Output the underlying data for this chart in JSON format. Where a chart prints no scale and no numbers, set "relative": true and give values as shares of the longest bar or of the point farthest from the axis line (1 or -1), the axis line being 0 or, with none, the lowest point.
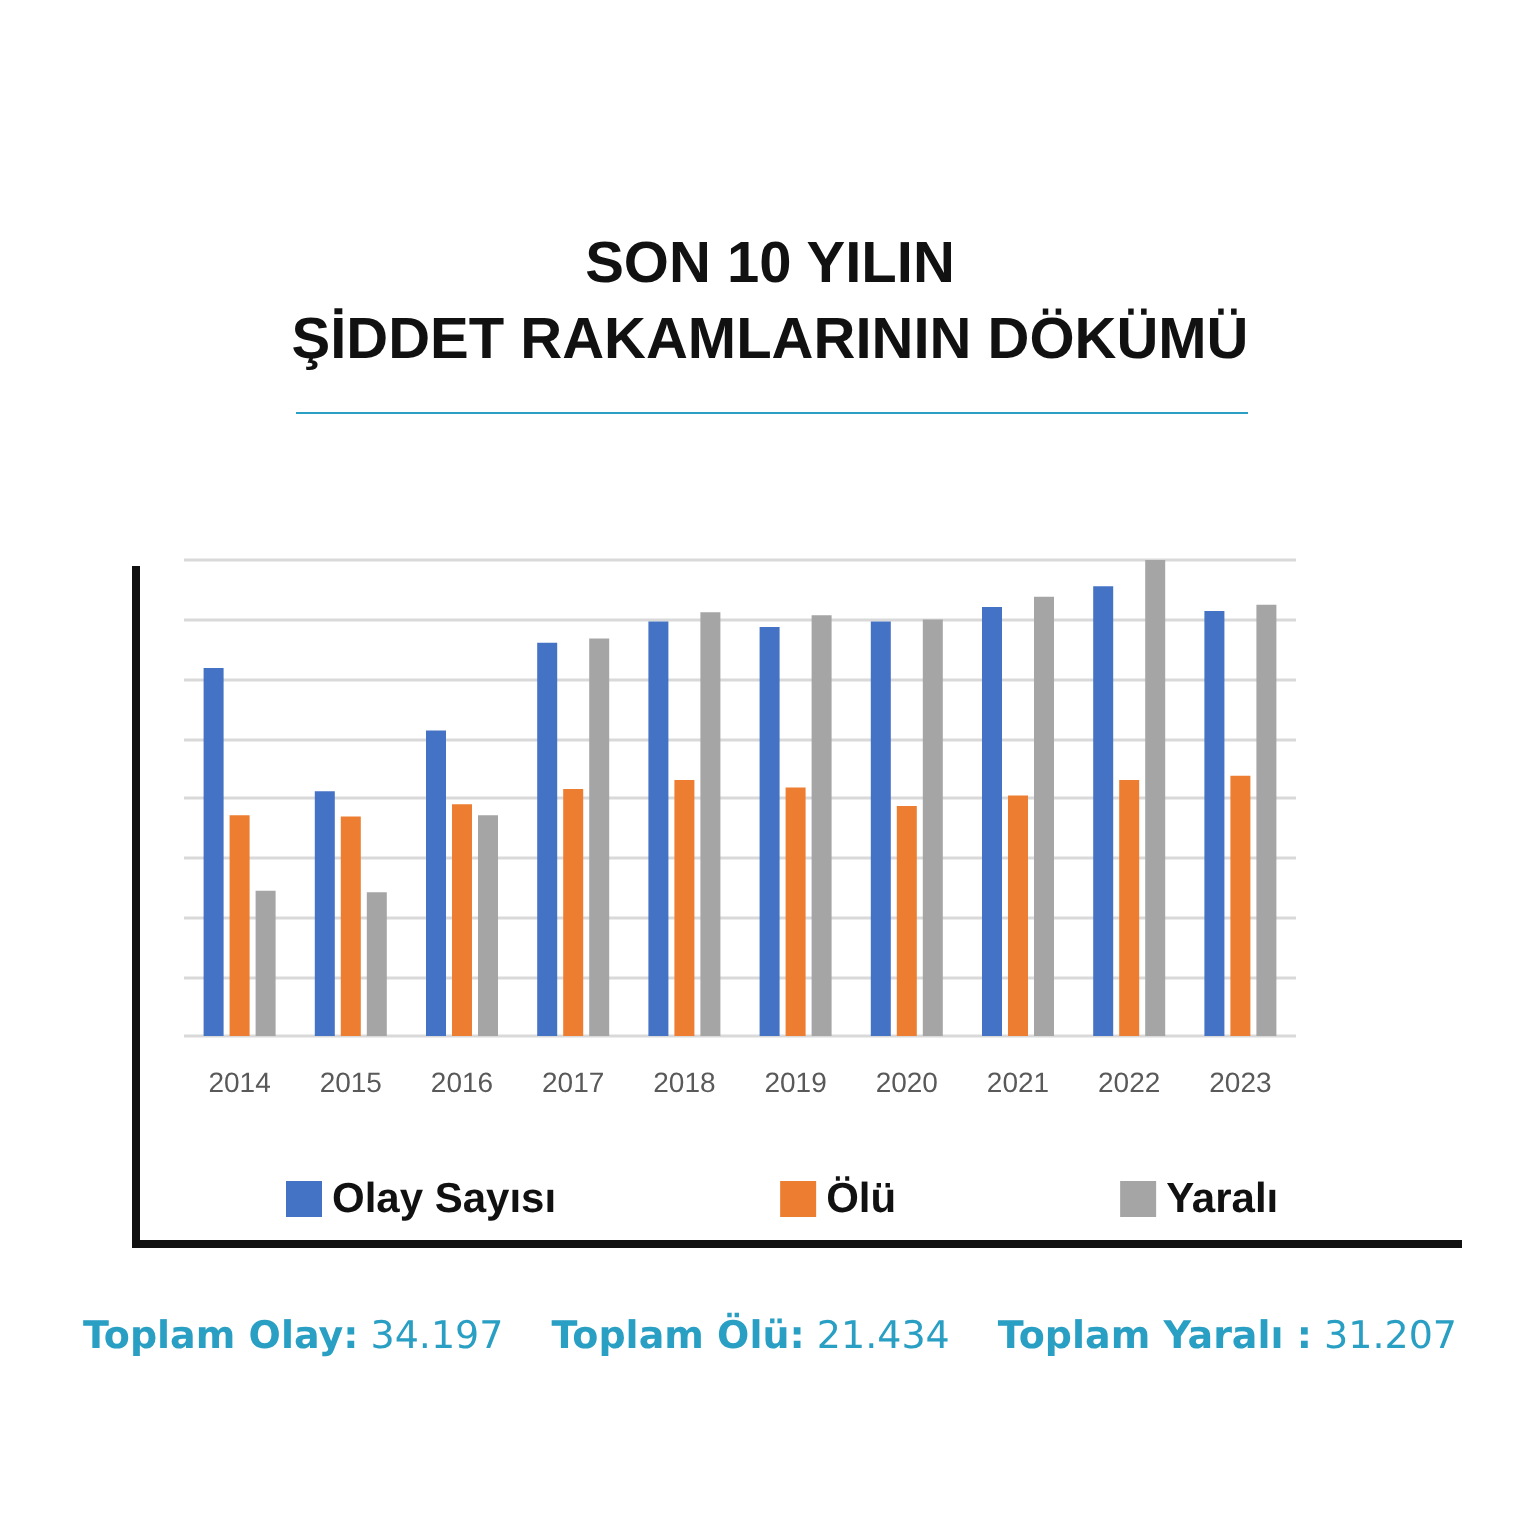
{
  "chart_data": {
    "type": "bar",
    "title": "SON 10 YILIN\nŞİDDET RAKAMLARININ DÖKÜMÜ",
    "relative": true,
    "grid": "y",
    "legend": "bottom",
    "categories": [
      "2014",
      "2015",
      "2016",
      "2017",
      "2018",
      "2019",
      "2020",
      "2021",
      "2022",
      "2023"
    ],
    "series": [
      {
        "name": "Olay Sayısı",
        "color": "#4472c4",
        "values": [
          0.773,
          0.514,
          0.642,
          0.826,
          0.871,
          0.859,
          0.871,
          0.901,
          0.945,
          0.893
        ]
      },
      {
        "name": "Ölü",
        "color": "#ed7d31",
        "values": [
          0.464,
          0.461,
          0.487,
          0.519,
          0.538,
          0.522,
          0.483,
          0.505,
          0.538,
          0.547
        ]
      },
      {
        "name": "Yaralı",
        "color": "#a5a5a5",
        "values": [
          0.305,
          0.302,
          0.464,
          0.835,
          0.89,
          0.884,
          0.875,
          0.923,
          1,
          0.906
        ]
      }
    ],
    "annotations": [
      "Toplam Olay: 34.197",
      "Toplam Ölü: 21.434",
      "Toplam Yaralı : 31.207"
    ]
  }
}
